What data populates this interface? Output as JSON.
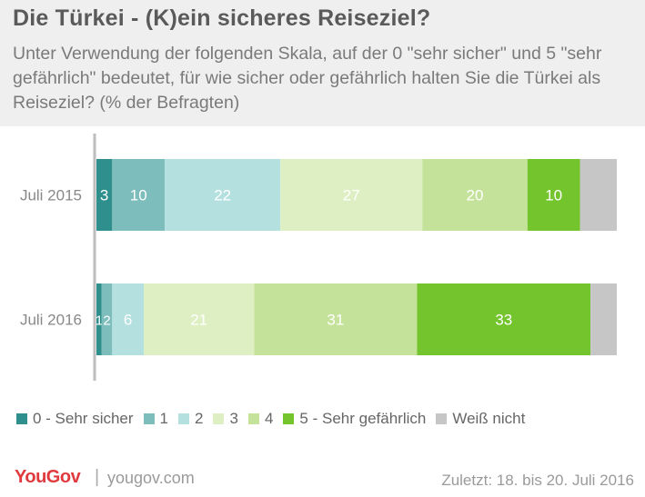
{
  "title": "Die Türkei - (K)ein sicheres Reiseziel?",
  "subtitle": "Unter Verwendung der folgenden Skala, auf der 0 \"sehr sicher\" und 5 \"sehr gefährlich\" bedeutet, für wie sicher oder gefährlich halten Sie die Türkei als Reiseziel? (% der Befragten)",
  "footer": {
    "logo": "YouGov",
    "separator": "|",
    "url": "yougov.com",
    "date": "Zuletzt: 18. bis 20. Juli 2016"
  },
  "chart_data": {
    "type": "bar",
    "orientation": "horizontal",
    "stacked": true,
    "categories": [
      "Juli 2015",
      "Juli 2016"
    ],
    "series": [
      {
        "name": "0 - Sehr sicher",
        "color": "#2e8f8c",
        "values": [
          3,
          1
        ]
      },
      {
        "name": "1",
        "color": "#7dbdbb",
        "values": [
          10,
          2
        ]
      },
      {
        "name": "2",
        "color": "#b5e0e0",
        "values": [
          22,
          6
        ]
      },
      {
        "name": "3",
        "color": "#def0c3",
        "values": [
          27,
          21
        ]
      },
      {
        "name": "4",
        "color": "#c5e29a",
        "values": [
          20,
          31
        ]
      },
      {
        "name": "5 - Sehr gefährlich",
        "color": "#74c42e",
        "values": [
          10,
          33
        ]
      },
      {
        "name": "Weiß nicht",
        "color": "#c6c6c6",
        "values": [
          7,
          5
        ]
      }
    ],
    "data_labels": [
      [
        "3",
        "10",
        "22",
        "27",
        "20",
        "10",
        ""
      ],
      [
        "1",
        "2",
        "6",
        "21",
        "31",
        "33",
        ""
      ]
    ],
    "legend_position": "bottom",
    "grid": false
  }
}
